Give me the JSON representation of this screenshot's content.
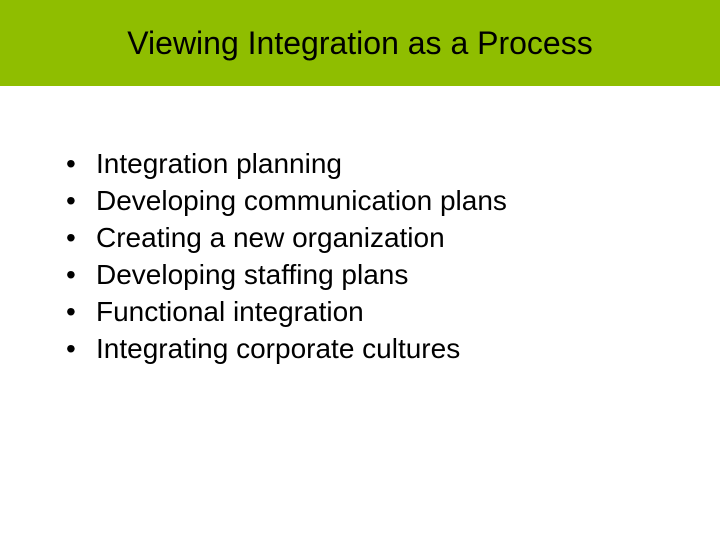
{
  "slide": {
    "title": "Viewing Integration as a Process",
    "title_bar_color": "#8fbe00",
    "title_font_size": 32,
    "title_color": "#000000",
    "background_color": "#ffffff",
    "bullets": [
      "Integration planning",
      "Developing communication plans",
      "Creating a new organization",
      "Developing staffing plans",
      "Functional integration",
      "Integrating corporate cultures"
    ],
    "bullet_font_size": 28,
    "bullet_color": "#000000"
  }
}
